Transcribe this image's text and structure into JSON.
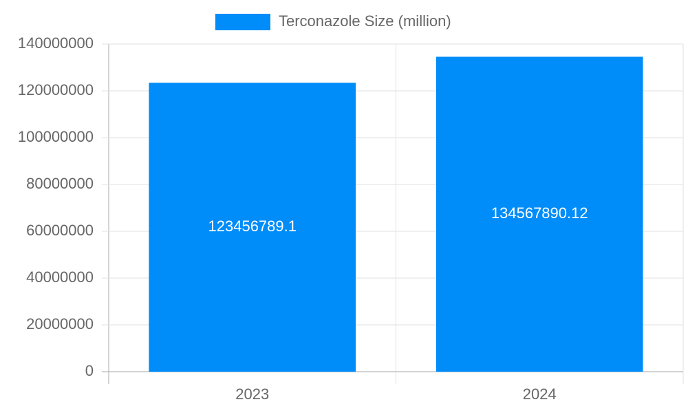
{
  "chart_data": {
    "type": "bar",
    "categories": [
      "2023",
      "2024"
    ],
    "series": [
      {
        "name": "Terconazole Size (million)",
        "color": "#008cf9",
        "values": [
          123456789.1,
          134567890.12
        ]
      }
    ],
    "ylim": [
      0,
      140000000
    ],
    "yticks": [
      0,
      20000000,
      40000000,
      60000000,
      80000000,
      100000000,
      120000000,
      140000000
    ],
    "grid": true,
    "legend": "top"
  }
}
